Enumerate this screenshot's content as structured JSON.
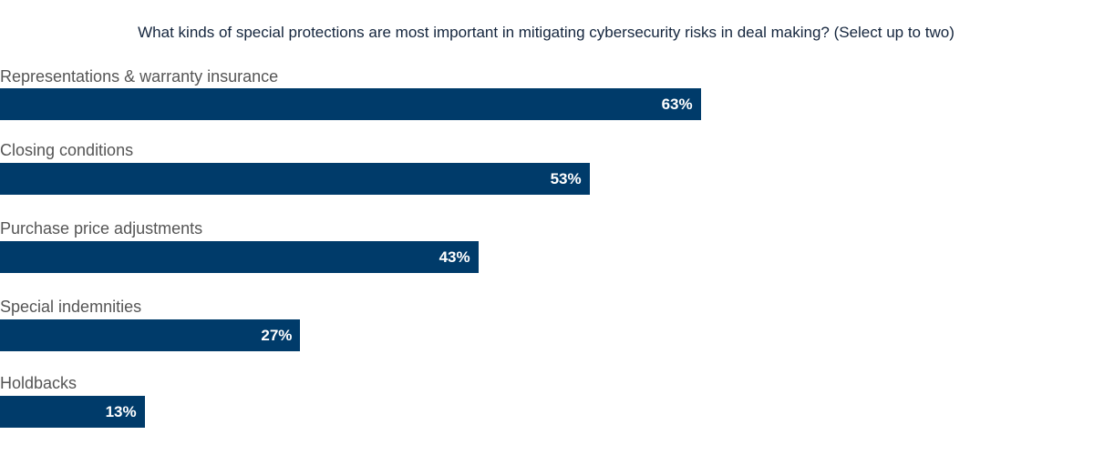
{
  "chart_data": {
    "type": "bar",
    "orientation": "horizontal",
    "title": "What kinds of special protections are most important in mitigating cybersecurity risks in deal making? (Select up to two)",
    "categories": [
      "Representations & warranty insurance",
      "Closing conditions",
      "Purchase price adjustments",
      "Special indemnities",
      "Holdbacks"
    ],
    "values": [
      63,
      53,
      43,
      27,
      13
    ],
    "value_labels": [
      "63%",
      "53%",
      "43%",
      "27%",
      "13%"
    ],
    "unit": "%",
    "grid": false,
    "bar_color": "#003b6a"
  }
}
